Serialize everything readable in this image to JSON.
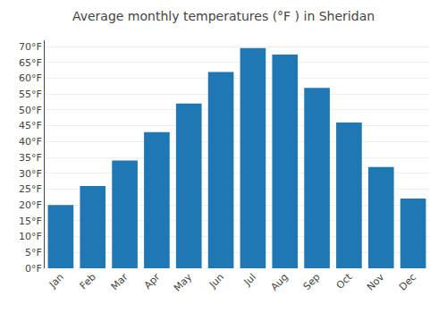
{
  "chart_data": {
    "type": "bar",
    "title": "Average monthly temperatures (°F ) in Sheridan",
    "categories": [
      "Jan",
      "Feb",
      "Mar",
      "Apr",
      "May",
      "Jun",
      "Jul",
      "Aug",
      "Sep",
      "Oct",
      "Nov",
      "Dec"
    ],
    "values": [
      20,
      26,
      34,
      43,
      52,
      62,
      69.5,
      67.5,
      57,
      46,
      32,
      22
    ],
    "ylim": [
      0,
      72
    ],
    "yticks": [
      {
        "value": 0,
        "label": "0°F"
      },
      {
        "value": 5,
        "label": "5°F"
      },
      {
        "value": 10,
        "label": "10°F"
      },
      {
        "value": 15,
        "label": "15°F"
      },
      {
        "value": 20,
        "label": "20°F"
      },
      {
        "value": 25,
        "label": "25°F"
      },
      {
        "value": 30,
        "label": "30°F"
      },
      {
        "value": 35,
        "label": "35°F"
      },
      {
        "value": 40,
        "label": "40°F"
      },
      {
        "value": 45,
        "label": "45°F"
      },
      {
        "value": 50,
        "label": "50°F"
      },
      {
        "value": 55,
        "label": "55°F"
      },
      {
        "value": 60,
        "label": "60°F"
      },
      {
        "value": 65,
        "label": "65°F"
      },
      {
        "value": 70,
        "label": "70°F"
      }
    ],
    "grid": true
  }
}
